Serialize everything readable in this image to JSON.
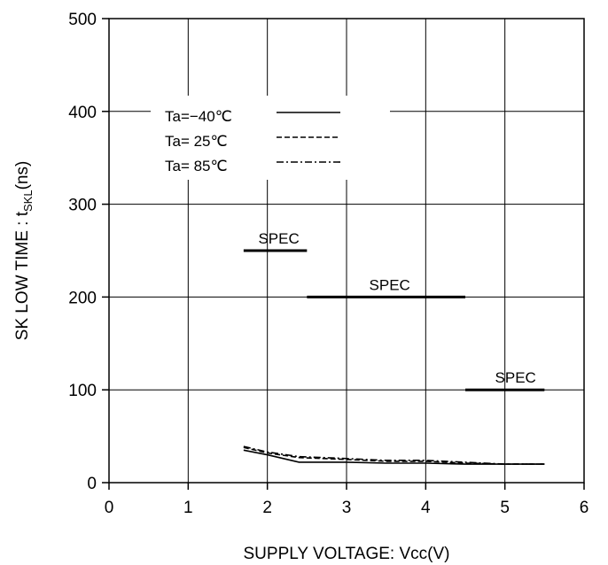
{
  "chart_data": {
    "type": "line",
    "title": "",
    "xlabel": "SUPPLY VOLTAGE: Vcc(V)",
    "ylabel_main": "SK LOW TIME : t",
    "ylabel_sub": "SKL",
    "ylabel_unit": "(ns)",
    "xlim": [
      0,
      6
    ],
    "ylim": [
      0,
      500
    ],
    "x_ticks": [
      "0",
      "1",
      "2",
      "3",
      "4",
      "5",
      "6"
    ],
    "y_ticks": [
      "0",
      "100",
      "200",
      "300",
      "400",
      "500"
    ],
    "grid": true,
    "legend_position": "top-left",
    "series": [
      {
        "name": "Ta=−40℃",
        "dash": "solid",
        "x": [
          1.7,
          2.0,
          2.4,
          3.0,
          3.5,
          4.0,
          4.5,
          5.0,
          5.5
        ],
        "y": [
          35,
          30,
          22,
          22,
          21,
          21,
          20,
          20,
          20
        ]
      },
      {
        "name": "Ta= 25℃",
        "dash": "dashed",
        "x": [
          1.7,
          2.0,
          2.4,
          3.0,
          3.5,
          4.0,
          4.5,
          5.0,
          5.5
        ],
        "y": [
          38,
          32,
          27,
          25,
          23,
          23,
          21,
          20,
          20
        ]
      },
      {
        "name": "Ta= 85℃",
        "dash": "dashdot",
        "x": [
          1.7,
          2.0,
          2.4,
          3.0,
          3.5,
          4.0,
          4.5,
          5.0,
          5.5
        ],
        "y": [
          39,
          33,
          28,
          26,
          24,
          24,
          22,
          20,
          20
        ]
      }
    ],
    "spec_lines": [
      {
        "label": "SPEC",
        "x_start": 1.7,
        "x_end": 2.5,
        "y": 250
      },
      {
        "label": "SPEC",
        "x_start": 2.5,
        "x_end": 4.5,
        "y": 200
      },
      {
        "label": "SPEC",
        "x_start": 4.5,
        "x_end": 5.5,
        "y": 100
      }
    ]
  }
}
